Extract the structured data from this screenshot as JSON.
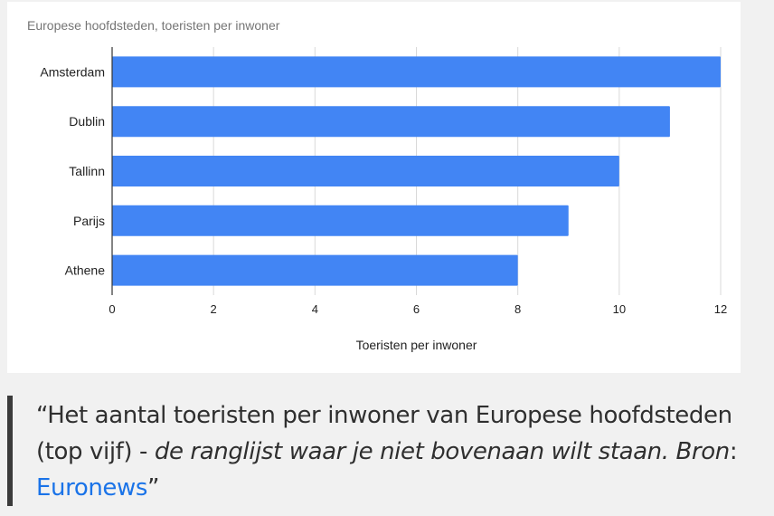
{
  "chart_data": {
    "type": "bar",
    "orientation": "horizontal",
    "title": "Europese hoofdsteden, toeristen per inwoner",
    "categories": [
      "Amsterdam",
      "Dublin",
      "Tallinn",
      "Parijs",
      "Athene"
    ],
    "values": [
      12,
      11,
      10,
      9,
      8
    ],
    "xlabel": "Toeristen per inwoner",
    "ylabel": "",
    "xlim": [
      0,
      12
    ],
    "xticks": [
      "0",
      "2",
      "4",
      "6",
      "8",
      "10",
      "12"
    ],
    "bar_color": "#4285f4",
    "grid": true
  },
  "caption": {
    "quote_open": "“",
    "plain": "Het aantal toeristen per inwoner van Europese hoofdsteden (top vijf) - ",
    "italic": "de ranglijst waar je niet bovenaan wilt staan. Bron",
    "colon": ": ",
    "link_text": "Euronews",
    "link_color": "#1a73e8",
    "quote_close": "”"
  }
}
